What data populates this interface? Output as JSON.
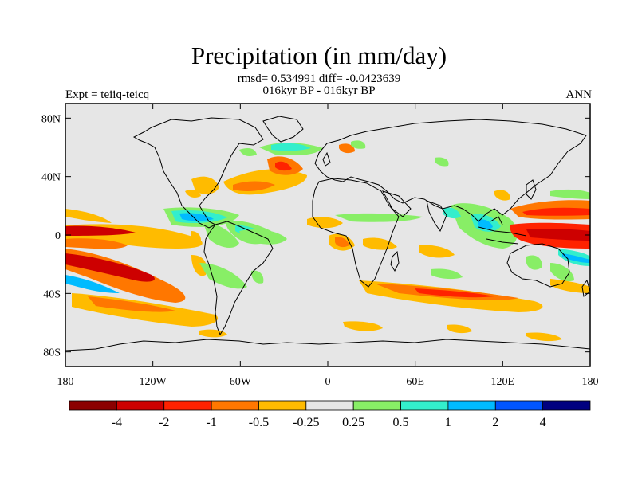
{
  "title": "Precipitation (in mm/day)",
  "stats_line": "rmsd= 0.534991 diff= -0.0423639",
  "period_line": "016kyr BP - 016kyr BP",
  "experiment_label": "Expt = teiiq-teicq",
  "season_label": "ANN",
  "map": {
    "background_color": "#e6e6e6",
    "x_ticks": [
      {
        "lon": -180,
        "label": "180"
      },
      {
        "lon": -120,
        "label": "120W"
      },
      {
        "lon": -60,
        "label": "60W"
      },
      {
        "lon": 0,
        "label": "0"
      },
      {
        "lon": 60,
        "label": "60E"
      },
      {
        "lon": 120,
        "label": "120E"
      },
      {
        "lon": 180,
        "label": "180"
      }
    ],
    "y_ticks": [
      {
        "lat": 80,
        "label": "80N"
      },
      {
        "lat": 40,
        "label": "40N"
      },
      {
        "lat": 0,
        "label": "0"
      },
      {
        "lat": -40,
        "label": "40S"
      },
      {
        "lat": -80,
        "label": "80S"
      }
    ]
  },
  "colorbar": {
    "colors": [
      "#8b0000",
      "#cd0000",
      "#ff2200",
      "#ff7700",
      "#ffbb00",
      "#e6e6e6",
      "#88ee66",
      "#33eecc",
      "#00bbff",
      "#0055ff",
      "#000080"
    ],
    "labels": [
      "-4",
      "-2",
      "-1",
      "-0.5",
      "-0.25",
      "0.25",
      "0.5",
      "1",
      "2",
      "4"
    ]
  }
}
